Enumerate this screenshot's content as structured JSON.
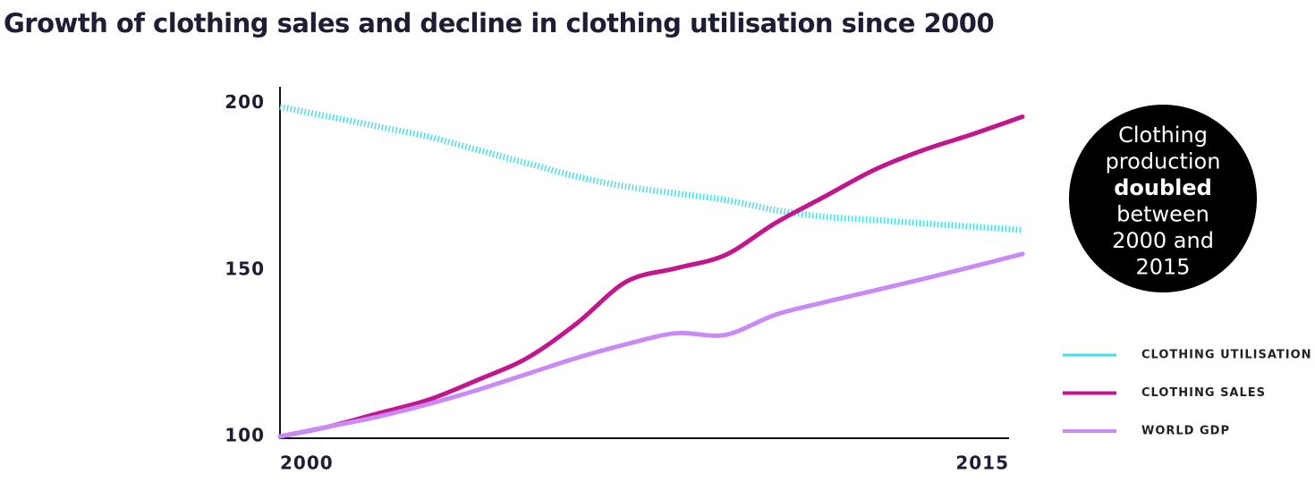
{
  "chart_data": {
    "type": "line",
    "title": "Growth of clothing sales and decline in clothing utilisation since 2000",
    "x": [
      2000,
      2001,
      2002,
      2003,
      2004,
      2005,
      2006,
      2007,
      2008,
      2009,
      2010,
      2011,
      2012,
      2013,
      2014,
      2015
    ],
    "series": [
      {
        "name": "CLOTHING UTILISATION",
        "color": "#45e0e6",
        "dashed": true,
        "values": [
          199,
          196,
          193,
          190,
          186,
          182,
          178,
          175,
          173,
          171,
          168,
          166,
          165,
          164,
          163,
          162
        ]
      },
      {
        "name": "CLOTHING SALES",
        "color": "#c2168e",
        "dashed": false,
        "values": [
          100,
          103,
          107,
          111,
          117,
          123.6,
          134,
          146.5,
          150.5,
          154.5,
          164,
          172,
          180,
          186,
          190.8,
          196
        ]
      },
      {
        "name": "WORLD GDP",
        "color": "#c98af5",
        "dashed": false,
        "values": [
          100,
          103,
          106,
          109.7,
          114,
          118.8,
          123.6,
          127.7,
          131,
          130.5,
          136.5,
          140.3,
          143.8,
          147.3,
          151,
          154.8
        ]
      }
    ],
    "xlim": [
      2000,
      2015
    ],
    "xticks": [
      2000,
      2015
    ],
    "ylim": [
      100,
      205
    ],
    "yticks": [
      100,
      150,
      200
    ],
    "grid": false,
    "legend": "right",
    "annotation": {
      "lines": [
        "Clothing",
        "production",
        "doubled",
        "between",
        "2000 and",
        "2015"
      ],
      "bold_line": 2
    }
  }
}
